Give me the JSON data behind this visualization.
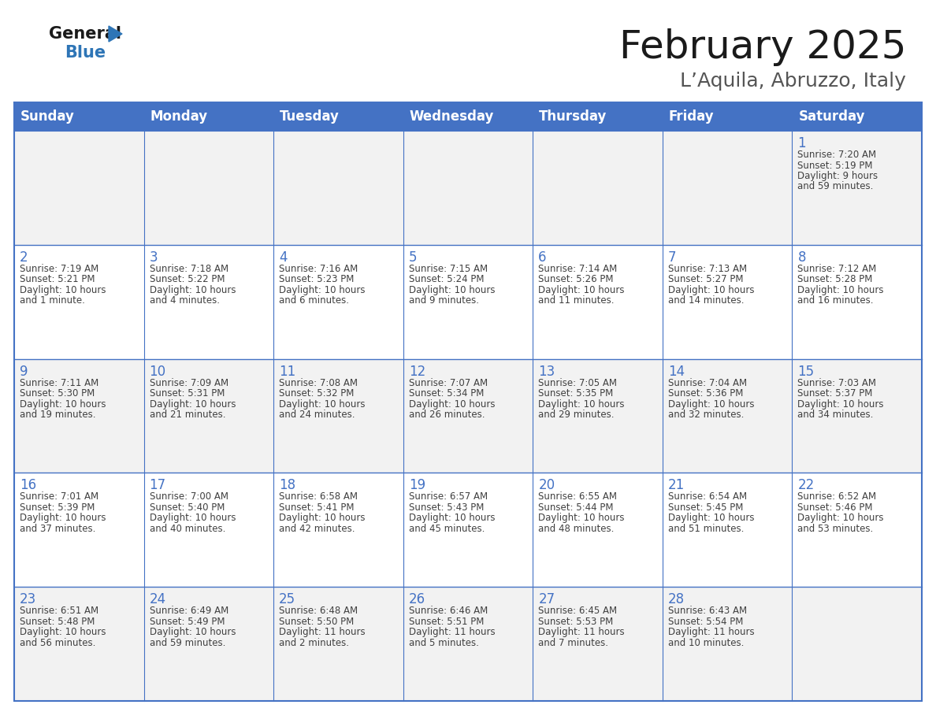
{
  "title": "February 2025",
  "subtitle": "L’Aquila, Abruzzo, Italy",
  "header_bg": "#4472C4",
  "header_text": "#FFFFFF",
  "header_days": [
    "Sunday",
    "Monday",
    "Tuesday",
    "Wednesday",
    "Thursday",
    "Friday",
    "Saturday"
  ],
  "row_bg_light": "#F2F2F2",
  "row_bg_white": "#FFFFFF",
  "day_number_color": "#4472C4",
  "text_color": "#404040",
  "border_color": "#4472C4",
  "logo_general_color": "#1a1a1a",
  "logo_blue_color": "#2E75B6",
  "calendar_data": [
    [
      null,
      null,
      null,
      null,
      null,
      null,
      {
        "day": 1,
        "sunrise": "7:20 AM",
        "sunset": "5:19 PM",
        "daylight": "9 hours and 59 minutes."
      }
    ],
    [
      {
        "day": 2,
        "sunrise": "7:19 AM",
        "sunset": "5:21 PM",
        "daylight": "10 hours and 1 minute."
      },
      {
        "day": 3,
        "sunrise": "7:18 AM",
        "sunset": "5:22 PM",
        "daylight": "10 hours and 4 minutes."
      },
      {
        "day": 4,
        "sunrise": "7:16 AM",
        "sunset": "5:23 PM",
        "daylight": "10 hours and 6 minutes."
      },
      {
        "day": 5,
        "sunrise": "7:15 AM",
        "sunset": "5:24 PM",
        "daylight": "10 hours and 9 minutes."
      },
      {
        "day": 6,
        "sunrise": "7:14 AM",
        "sunset": "5:26 PM",
        "daylight": "10 hours and 11 minutes."
      },
      {
        "day": 7,
        "sunrise": "7:13 AM",
        "sunset": "5:27 PM",
        "daylight": "10 hours and 14 minutes."
      },
      {
        "day": 8,
        "sunrise": "7:12 AM",
        "sunset": "5:28 PM",
        "daylight": "10 hours and 16 minutes."
      }
    ],
    [
      {
        "day": 9,
        "sunrise": "7:11 AM",
        "sunset": "5:30 PM",
        "daylight": "10 hours and 19 minutes."
      },
      {
        "day": 10,
        "sunrise": "7:09 AM",
        "sunset": "5:31 PM",
        "daylight": "10 hours and 21 minutes."
      },
      {
        "day": 11,
        "sunrise": "7:08 AM",
        "sunset": "5:32 PM",
        "daylight": "10 hours and 24 minutes."
      },
      {
        "day": 12,
        "sunrise": "7:07 AM",
        "sunset": "5:34 PM",
        "daylight": "10 hours and 26 minutes."
      },
      {
        "day": 13,
        "sunrise": "7:05 AM",
        "sunset": "5:35 PM",
        "daylight": "10 hours and 29 minutes."
      },
      {
        "day": 14,
        "sunrise": "7:04 AM",
        "sunset": "5:36 PM",
        "daylight": "10 hours and 32 minutes."
      },
      {
        "day": 15,
        "sunrise": "7:03 AM",
        "sunset": "5:37 PM",
        "daylight": "10 hours and 34 minutes."
      }
    ],
    [
      {
        "day": 16,
        "sunrise": "7:01 AM",
        "sunset": "5:39 PM",
        "daylight": "10 hours and 37 minutes."
      },
      {
        "day": 17,
        "sunrise": "7:00 AM",
        "sunset": "5:40 PM",
        "daylight": "10 hours and 40 minutes."
      },
      {
        "day": 18,
        "sunrise": "6:58 AM",
        "sunset": "5:41 PM",
        "daylight": "10 hours and 42 minutes."
      },
      {
        "day": 19,
        "sunrise": "6:57 AM",
        "sunset": "5:43 PM",
        "daylight": "10 hours and 45 minutes."
      },
      {
        "day": 20,
        "sunrise": "6:55 AM",
        "sunset": "5:44 PM",
        "daylight": "10 hours and 48 minutes."
      },
      {
        "day": 21,
        "sunrise": "6:54 AM",
        "sunset": "5:45 PM",
        "daylight": "10 hours and 51 minutes."
      },
      {
        "day": 22,
        "sunrise": "6:52 AM",
        "sunset": "5:46 PM",
        "daylight": "10 hours and 53 minutes."
      }
    ],
    [
      {
        "day": 23,
        "sunrise": "6:51 AM",
        "sunset": "5:48 PM",
        "daylight": "10 hours and 56 minutes."
      },
      {
        "day": 24,
        "sunrise": "6:49 AM",
        "sunset": "5:49 PM",
        "daylight": "10 hours and 59 minutes."
      },
      {
        "day": 25,
        "sunrise": "6:48 AM",
        "sunset": "5:50 PM",
        "daylight": "11 hours and 2 minutes."
      },
      {
        "day": 26,
        "sunrise": "6:46 AM",
        "sunset": "5:51 PM",
        "daylight": "11 hours and 5 minutes."
      },
      {
        "day": 27,
        "sunrise": "6:45 AM",
        "sunset": "5:53 PM",
        "daylight": "11 hours and 7 minutes."
      },
      {
        "day": 28,
        "sunrise": "6:43 AM",
        "sunset": "5:54 PM",
        "daylight": "11 hours and 10 minutes."
      },
      null
    ]
  ],
  "figsize": [
    11.88,
    9.18
  ],
  "dpi": 100
}
